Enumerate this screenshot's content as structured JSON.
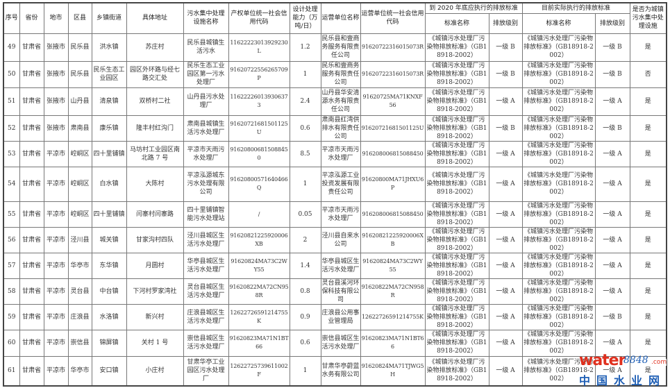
{
  "header": {
    "seq": "序号",
    "province": "省份",
    "city": "地市",
    "county": "区县",
    "town": "乡镇街道",
    "address": "具体地址",
    "facility": "污水集中处理设施名称",
    "owner_code": "产权单位统一社会信用代码",
    "capacity": "设计处理能力（万吨/日）",
    "operator": "运营单位名称",
    "operator_code": "运营单位统一社会信用代码",
    "group_2020": "到 2020 年底应执行的排放标准",
    "group_current": "目前实际执行的排放标准",
    "std_name": "标准名称",
    "level": "排放级别",
    "is_facility": "是否为城镇污水集中处理设施"
  },
  "rows": [
    [
      "49",
      "甘肃省",
      "张掖市",
      "民乐县",
      "洪水镇",
      "苏庄村",
      "民乐县城镇生活污水",
      "11622223013929230L",
      "1.2",
      "民乐县和壹商务服务有限责任公司",
      "91620722316015073R",
      "《城镇污水处理厂污染物排放标准》（GB18918-2002）",
      "一级 B",
      "《城镇污水处理厂污染物排放标准》（GB18918-2002）",
      "一级 B",
      "是"
    ],
    [
      "50",
      "甘肃省",
      "张掖市",
      "民乐县",
      "民乐生态工业园区",
      "园区外环路与经七路交汇处",
      "民乐生态工业园区第一污水处理厂",
      "91620722556265709P",
      "1",
      "民乐和壹商务服务有限责任公司",
      "91620722316015073R",
      "《城镇污水处理厂污染物排放标准》（GB18918-2002）",
      "一级 B",
      "《城镇污水处理厂污染物排放标准》（GB18918-2002）",
      "一级 B",
      "否"
    ],
    [
      "51",
      "甘肃省",
      "张掖市",
      "山丹县",
      "清泉镇",
      "双桥村二社",
      "山丹县污水处理厂",
      "116222260139306373",
      "2.4",
      "山丹县华安清源水务有限责任公司",
      "91620725MA71KNXF56",
      "《城镇污水处理厂污染物排放标准》（GB18918-2002）",
      "一级 A",
      "《城镇污水处理厂污染物排放标准》（GB18918-2002）",
      "一级 A",
      "是"
    ],
    [
      "52",
      "甘肃省",
      "张掖市",
      "肃南县",
      "康乐镇",
      "隆丰村红沟门",
      "肃南县城镇生活污水处理厂",
      "91620721681501125U",
      "0.6",
      "肃南县红湾供排水有限责任公司",
      "91620721681501125U",
      "《城镇污水处理厂污染物排放标准》（GB18918-2002）",
      "一级 B",
      "《城镇污水处理厂污染物排放标准》（GB18918-2002）",
      "一级 B",
      "是"
    ],
    [
      "53",
      "甘肃省",
      "平凉市",
      "崆峒区",
      "四十里铺镇",
      "马坊村工业园区南北路 7 号",
      "平凉市天雨污水处理厂",
      "916208006815088450",
      "8.5",
      "平凉市天雨污水处理厂",
      "916208006815088450",
      "《城镇污水处理厂污染物排放标准》（GB18918-2002）",
      "一级 A",
      "《城镇污水处理厂污染物排放标准》（GB18918-2002）",
      "一级 A",
      "是"
    ],
    [
      "54",
      "甘肃省",
      "平凉市",
      "崆峒区",
      "白水镇",
      "大陈村",
      "平凉泓源城东污水处理有限公司",
      "91620800571640466Q",
      "1",
      "平凉泓源工业投资发展有限责任公司",
      "91620800MA71JHXU6P",
      "《城镇污水处理厂污染物排放标准》（GB18918-2002）",
      "一级 A",
      "《城镇污水处理厂污染物排放标准》（GB18918-2002）",
      "一级 A",
      "是"
    ],
    [
      "55",
      "甘肃省",
      "平凉市",
      "崆峒区",
      "四十里铺镇",
      "闫寨村闫寨路",
      "四十里铺镇智能污水处理站",
      "/",
      "0.05",
      "平凉市天雨污水处理厂",
      "916208006815088450",
      "《城镇污水处理厂污染物排放标准》（GB18918-2002）",
      "一级 A",
      "《城镇污水处理厂污染物排放标准》（GB18918-2002）",
      "一级 A",
      "是"
    ],
    [
      "56",
      "甘肃省",
      "平凉市",
      "泾川县",
      "城关镇",
      "甘家沟村四队",
      "泾川县城区生活污水处理厂",
      "91620821225920006XB",
      "2",
      "泾川县自来水公司",
      "91620821225920006XB",
      "《城镇污水处理厂污染物排放标准》（GB18918-2002）",
      "一级 A",
      "《城镇污水处理厂污染物排放标准》（GB18918-2002）",
      "一级 A",
      "是"
    ],
    [
      "57",
      "甘肃省",
      "平凉市",
      "华亭市",
      "东华镇",
      "月圆村",
      "华亭县城区生活污水处理厂",
      "91620824MA73C2WY55",
      "1.4",
      "华亭县城区生活污水处理厂",
      "91620824MA73C2WY55",
      "《城镇污水处理厂污染物排放标准》（GB18918-2002）",
      "一级 A",
      "《城镇污水处理厂污染物排放标准》（GB18918-2002）",
      "一级 A",
      "是"
    ],
    [
      "58",
      "甘肃省",
      "平凉市",
      "灵台县",
      "中台镇",
      "下河村罗家湾社",
      "灵台县城区生活污水处理厂",
      "91620822MA72CN958R",
      "0.8",
      "灵台县溪河环保科技有限公司",
      "91620822MA72CN958R",
      "《城镇污水处理厂污染物排放标准》（GB18918-2002）",
      "一级 A",
      "《城镇污水处理厂污染物排放标准》（GB18918-2002）",
      "一级 A",
      "是"
    ],
    [
      "59",
      "甘肃省",
      "平凉市",
      "庄浪县",
      "水洛镇",
      "新兴村",
      "庄浪县城区生活污水处理厂",
      "12622726591214755K",
      "0.9",
      "庄浪县公用事业管理局",
      "12622726591214755K",
      "《城镇污水处理厂污染物排放标准》（GB18918-2002）",
      "一级 A",
      "《城镇污水处理厂污染物排放标准》（GB18918-2002）",
      "一级 B",
      "是"
    ],
    [
      "60",
      "甘肃省",
      "平凉市",
      "崇信县",
      "锦屏镇",
      "关村 1 号",
      "崇信县城区生活污水处理厂",
      "91620823MA71N1BT66",
      "0.6",
      "崇信县城区生活污水处理厂",
      "91620823MA71N1BT66",
      "《城镇污水处理厂污染物排放标准》（GB18918-2002）",
      "一级 A",
      "《城镇污水处理厂污染物排放标准》（GB18918-2002）",
      "一级 A",
      "是"
    ],
    [
      "61",
      "甘肃省",
      "平凉市",
      "华亭市",
      "安口镇",
      "小庄村",
      "甘肃华亭工业园区污水处理厂",
      "12622725739611002F",
      "1",
      "甘肃华亭蔚蓝水务有限公司",
      "91620824MA71TJWG5H",
      "《城镇污水处理厂污染物排放标准》（GB18918-2002）",
      "一级 A",
      "《城镇污水处理厂污染物排放标准》（GB18918-2002）",
      "一级 A",
      "是"
    ]
  ],
  "watermark": {
    "en": "water",
    "num": "8848",
    "com": ".com",
    "cn": "中国水业网"
  }
}
